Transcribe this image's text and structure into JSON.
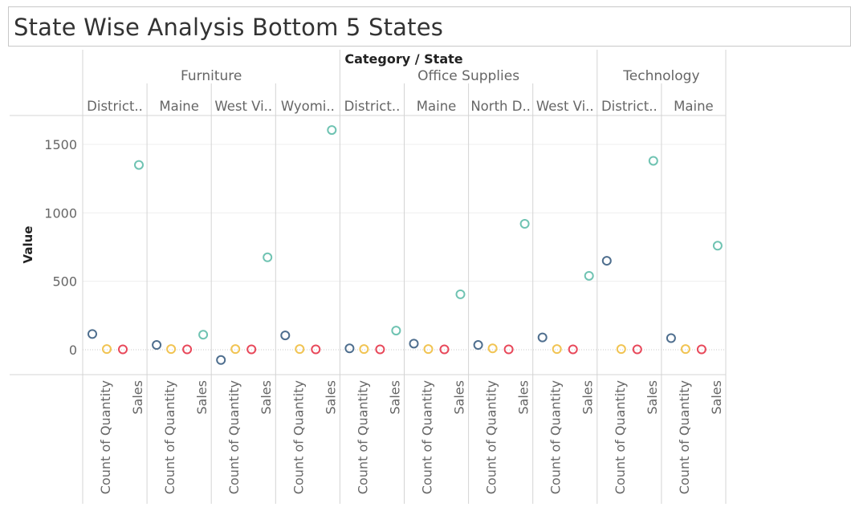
{
  "title": "State Wise Analysis Bottom 5 States",
  "colors": {
    "measure_1": "#4e6e8e",
    "measure_2": "#f1c453",
    "measure_3": "#e8485a",
    "sales": "#6fc3b2",
    "grid": "#d4d4d4",
    "gridline": "#efefef"
  },
  "chart_data": {
    "type": "scatter",
    "title": "State Wise Analysis Bottom 5 States",
    "column_header_title": "Category / State",
    "ylabel": "Value",
    "ylim": [
      -190,
      1750
    ],
    "y_ticks": [
      0,
      500,
      1000,
      1500
    ],
    "y_tick_labels": [
      "0",
      "500",
      "1000",
      "1500"
    ],
    "measure_labels": [
      "Count of Quantity",
      "Sales"
    ],
    "categories": [
      {
        "name": "Furniture",
        "states": [
          {
            "label": "District..",
            "values": [
              115,
              5,
              3,
              1350
            ]
          },
          {
            "label": "Maine",
            "values": [
              35,
              5,
              3,
              110
            ]
          },
          {
            "label": "West Vi..",
            "values": [
              -75,
              5,
              3,
              675
            ]
          },
          {
            "label": "Wyomi..",
            "values": [
              105,
              5,
              3,
              1605
            ]
          }
        ]
      },
      {
        "name": "Office Supplies",
        "states": [
          {
            "label": "District..",
            "values": [
              10,
              5,
              3,
              140
            ]
          },
          {
            "label": "Maine",
            "values": [
              45,
              5,
              3,
              405
            ]
          },
          {
            "label": "North D..",
            "values": [
              35,
              10,
              3,
              920
            ]
          },
          {
            "label": "West Vi..",
            "values": [
              90,
              5,
              3,
              540
            ]
          }
        ]
      },
      {
        "name": "Technology",
        "states": [
          {
            "label": "District..",
            "values": [
              650,
              5,
              3,
              1380
            ]
          },
          {
            "label": "Maine",
            "values": [
              85,
              5,
              3,
              760
            ]
          }
        ]
      }
    ]
  }
}
